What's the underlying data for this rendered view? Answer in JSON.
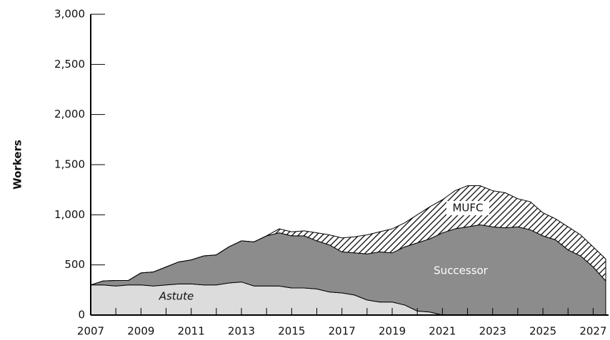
{
  "chart_data": {
    "type": "stacked_area",
    "y_label": "Workers",
    "x": [
      2007,
      2007.5,
      2008,
      2008.5,
      2009,
      2009.5,
      2010,
      2010.5,
      2011,
      2011.5,
      2012,
      2012.5,
      2013,
      2013.5,
      2014,
      2014.5,
      2015,
      2015.5,
      2016,
      2016.5,
      2017,
      2017.5,
      2018,
      2018.5,
      2019,
      2019.5,
      2020,
      2020.5,
      2021,
      2021.5,
      2022,
      2022.5,
      2023,
      2023.5,
      2024,
      2024.5,
      2025,
      2025.5,
      2026,
      2026.5,
      2027,
      2027.5
    ],
    "series": [
      {
        "name": "Astute",
        "color": "#dcdcdc",
        "hatched": false,
        "values": [
          300,
          300,
          290,
          300,
          300,
          290,
          300,
          310,
          310,
          300,
          300,
          320,
          330,
          290,
          290,
          290,
          270,
          270,
          260,
          230,
          220,
          200,
          150,
          130,
          130,
          100,
          40,
          30,
          0,
          0,
          0,
          0,
          0,
          0,
          0,
          0,
          0,
          0,
          0,
          0,
          0,
          0
        ]
      },
      {
        "name": "Successor",
        "color": "#8c8c8c",
        "hatched": false,
        "values": [
          0,
          40,
          55,
          45,
          120,
          140,
          180,
          220,
          240,
          290,
          300,
          360,
          410,
          440,
          500,
          530,
          520,
          520,
          480,
          470,
          410,
          420,
          460,
          500,
          490,
          580,
          680,
          730,
          820,
          860,
          880,
          900,
          880,
          870,
          880,
          850,
          790,
          750,
          650,
          590,
          480,
          340
        ]
      },
      {
        "name": "MUFC",
        "color": "#000000",
        "hatched": true,
        "values": [
          0,
          0,
          0,
          0,
          0,
          0,
          0,
          0,
          0,
          0,
          0,
          0,
          0,
          0,
          0,
          40,
          40,
          50,
          80,
          100,
          140,
          160,
          190,
          200,
          240,
          240,
          280,
          320,
          330,
          380,
          410,
          390,
          360,
          350,
          280,
          280,
          230,
          210,
          230,
          210,
          200,
          220
        ]
      }
    ],
    "xlim": [
      2007,
      2027.5
    ],
    "xticks": [
      2007,
      2009,
      2011,
      2013,
      2015,
      2017,
      2019,
      2021,
      2023,
      2025,
      2027
    ],
    "xminor_ticks": [
      2008,
      2010,
      2012,
      2014,
      2016,
      2018,
      2020,
      2022,
      2024,
      2026
    ],
    "ylim": [
      0,
      3000
    ],
    "yticks": [
      {
        "value": 0,
        "label": "0"
      },
      {
        "value": 500,
        "label": "500"
      },
      {
        "value": 1000,
        "label": "1,000"
      },
      {
        "value": 1500,
        "label": "1,500"
      },
      {
        "value": 2000,
        "label": "2,000"
      },
      {
        "value": 2500,
        "label": "2,500"
      },
      {
        "value": 3000,
        "label": "3,000"
      }
    ]
  }
}
